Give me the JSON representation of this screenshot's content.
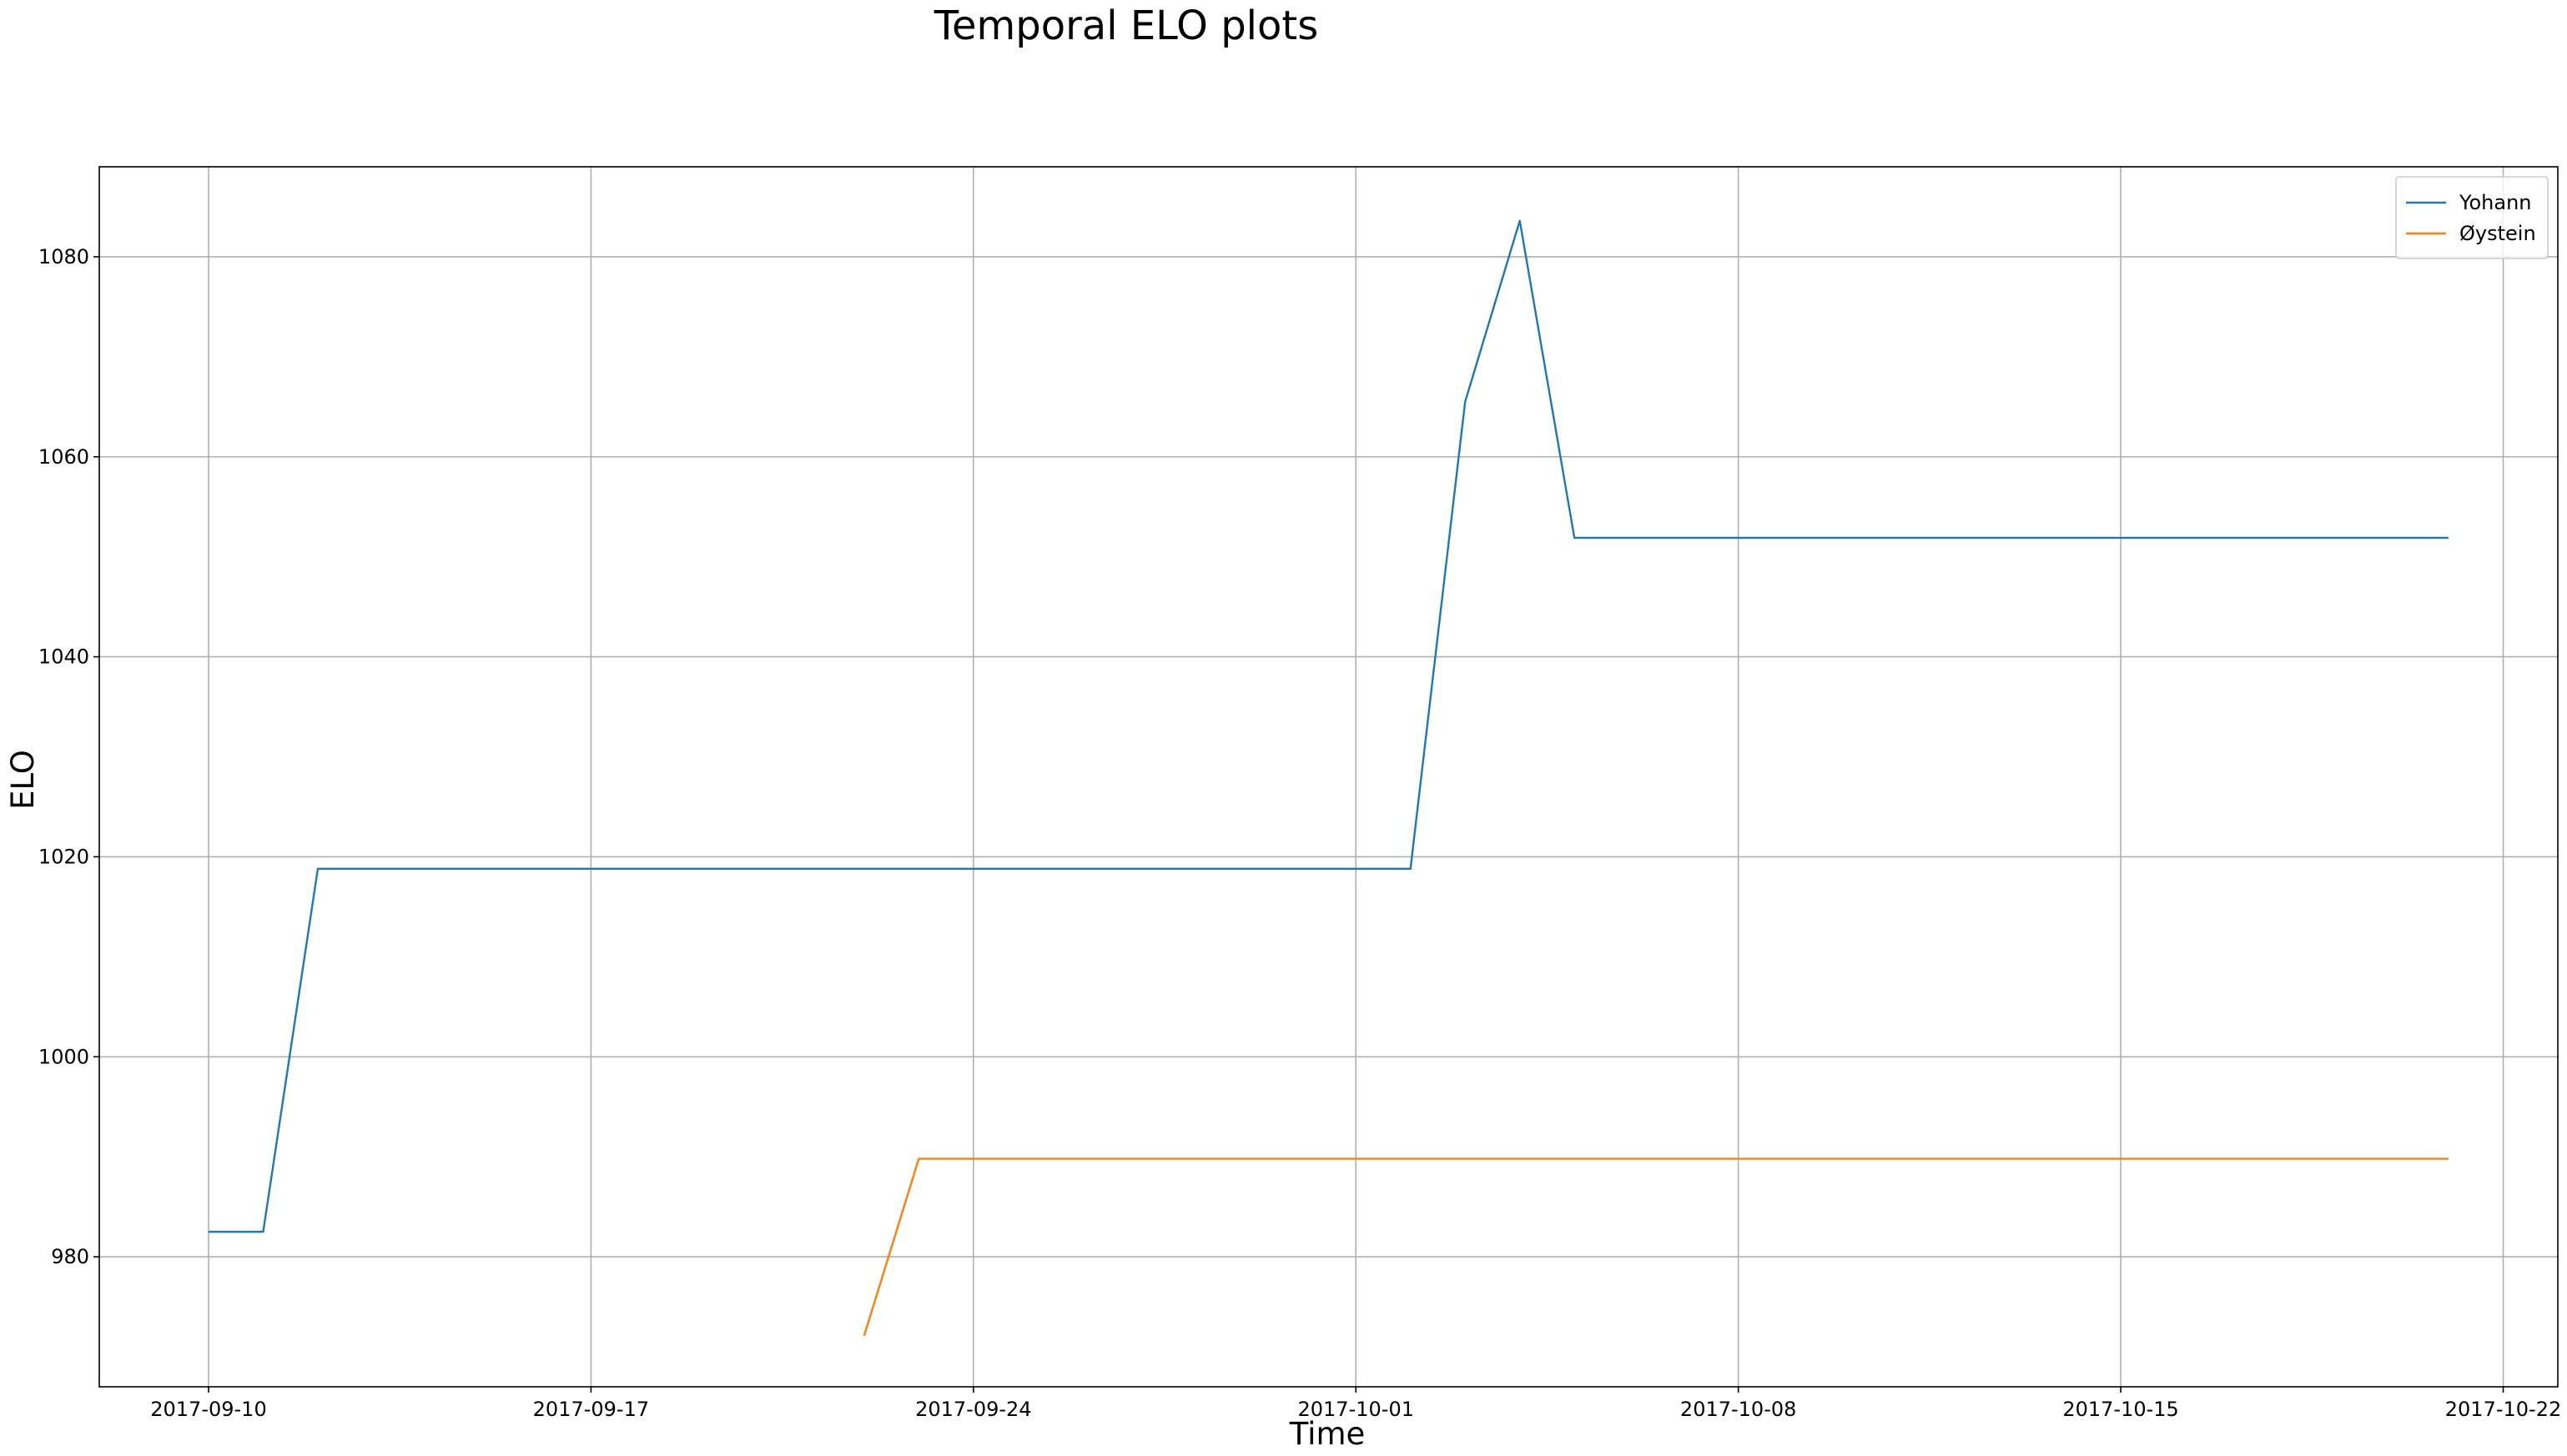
{
  "chart_data": {
    "type": "line",
    "title": "Temporal ELO plots",
    "xlabel": "Time",
    "ylabel": "ELO",
    "x_range": [
      "2017-09-08",
      "2017-10-23"
    ],
    "ylim": [
      967,
      1089
    ],
    "grid": true,
    "legend_position": "top-right",
    "x_ticks": [
      "2017-09-10",
      "2017-09-17",
      "2017-09-24",
      "2017-10-01",
      "2017-10-08",
      "2017-10-15",
      "2017-10-22"
    ],
    "y_ticks": [
      980,
      1000,
      1020,
      1040,
      1060,
      1080
    ],
    "series": [
      {
        "name": "Yohann",
        "color": "#1f77b4",
        "points": [
          {
            "x": "2017-09-10",
            "y": 982.5
          },
          {
            "x": "2017-09-11",
            "y": 982.5
          },
          {
            "x": "2017-09-12",
            "y": 1018.8
          },
          {
            "x": "2017-10-02",
            "y": 1018.8
          },
          {
            "x": "2017-10-03",
            "y": 1065.5
          },
          {
            "x": "2017-10-04",
            "y": 1083.6
          },
          {
            "x": "2017-10-05",
            "y": 1051.9
          },
          {
            "x": "2017-10-21",
            "y": 1051.9
          }
        ]
      },
      {
        "name": "Øystein",
        "color": "#ff7f0e",
        "points": [
          {
            "x": "2017-09-22",
            "y": 972.1
          },
          {
            "x": "2017-09-23",
            "y": 989.8
          },
          {
            "x": "2017-10-21",
            "y": 989.8
          }
        ]
      }
    ]
  }
}
